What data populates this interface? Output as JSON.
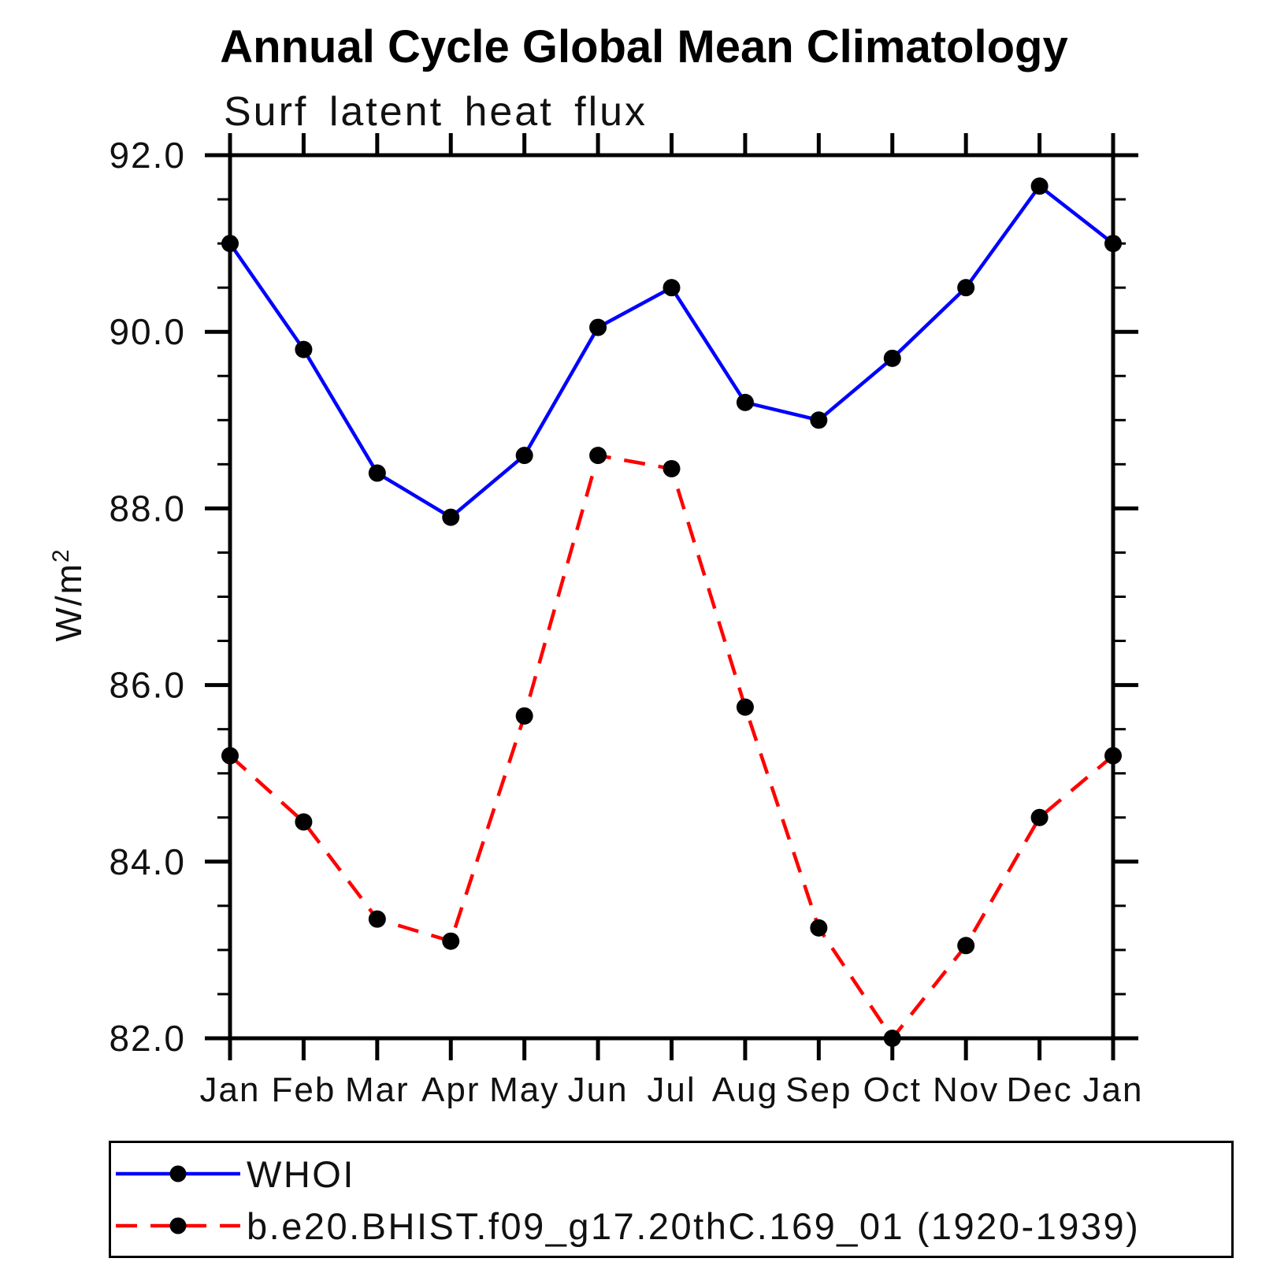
{
  "title": "Annual Cycle Global Mean Climatology",
  "subtitle": "Surf latent heat flux",
  "y_axis": {
    "label_base": "W/m",
    "label_exponent": "2",
    "tick_labels": [
      "92.0",
      "90.0",
      "88.0",
      "86.0",
      "84.0",
      "82.0"
    ]
  },
  "x_axis": {
    "tick_labels": [
      "Jan",
      "Feb",
      "Mar",
      "Apr",
      "May",
      "Jun",
      "Jul",
      "Aug",
      "Sep",
      "Oct",
      "Nov",
      "Dec",
      "Jan"
    ]
  },
  "colors": {
    "whoi_line": "#0000ff",
    "model_line": "#ff0000",
    "marker": "#000000",
    "axis": "#000000",
    "background": "#ffffff"
  },
  "legend": {
    "entries": [
      {
        "label": "WHOI"
      },
      {
        "label": "b.e20.BHIST.f09_g17.20thC.169_01 (1920-1939)"
      }
    ]
  },
  "chart_data": {
    "type": "line",
    "title": "Annual Cycle Global Mean Climatology",
    "subtitle": "Surf latent heat flux",
    "ylabel": "W/m^2",
    "categories": [
      "Jan",
      "Feb",
      "Mar",
      "Apr",
      "May",
      "Jun",
      "Jul",
      "Aug",
      "Sep",
      "Oct",
      "Nov",
      "Dec",
      "Jan"
    ],
    "ylim": [
      82.0,
      92.0
    ],
    "ytick_major_step": 2.0,
    "ytick_minor_step": 0.5,
    "grid": false,
    "legend_position": "bottom-box",
    "series": [
      {
        "name": "WHOI",
        "color": "#0000ff",
        "line_style": "solid",
        "marker": "circle",
        "marker_color": "#000000",
        "values": [
          91.0,
          89.8,
          88.4,
          87.9,
          88.6,
          90.05,
          90.5,
          89.2,
          89.0,
          89.7,
          90.5,
          91.65,
          91.0
        ]
      },
      {
        "name": "b.e20.BHIST.f09_g17.20thC.169_01 (1920-1939)",
        "color": "#ff0000",
        "line_style": "dashed",
        "marker": "circle",
        "marker_color": "#000000",
        "values": [
          85.2,
          84.45,
          83.35,
          83.1,
          85.65,
          88.6,
          88.45,
          85.75,
          83.25,
          82.0,
          83.05,
          84.5,
          85.2
        ]
      }
    ]
  }
}
